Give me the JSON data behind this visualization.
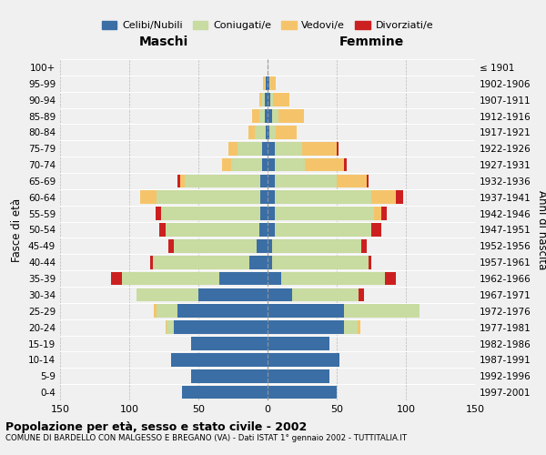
{
  "age_groups": [
    "0-4",
    "5-9",
    "10-14",
    "15-19",
    "20-24",
    "25-29",
    "30-34",
    "35-39",
    "40-44",
    "45-49",
    "50-54",
    "55-59",
    "60-64",
    "65-69",
    "70-74",
    "75-79",
    "80-84",
    "85-89",
    "90-94",
    "95-99",
    "100+"
  ],
  "birth_years": [
    "1997-2001",
    "1992-1996",
    "1987-1991",
    "1982-1986",
    "1977-1981",
    "1972-1976",
    "1967-1971",
    "1962-1966",
    "1957-1961",
    "1952-1956",
    "1947-1951",
    "1942-1946",
    "1937-1941",
    "1932-1936",
    "1927-1931",
    "1922-1926",
    "1917-1921",
    "1912-1916",
    "1907-1911",
    "1902-1906",
    "≤ 1901"
  ],
  "males": {
    "celibi": [
      62,
      55,
      70,
      55,
      68,
      65,
      50,
      35,
      13,
      8,
      6,
      5,
      5,
      5,
      4,
      4,
      1,
      2,
      2,
      1,
      0
    ],
    "coniugati": [
      0,
      0,
      0,
      0,
      5,
      15,
      45,
      70,
      70,
      60,
      68,
      72,
      75,
      55,
      22,
      18,
      8,
      4,
      2,
      1,
      0
    ],
    "vedovi": [
      0,
      0,
      0,
      0,
      1,
      2,
      0,
      0,
      0,
      0,
      0,
      0,
      12,
      3,
      7,
      6,
      5,
      5,
      2,
      1,
      0
    ],
    "divorziati": [
      0,
      0,
      0,
      0,
      0,
      0,
      0,
      8,
      2,
      4,
      4,
      4,
      0,
      2,
      0,
      0,
      0,
      0,
      0,
      0,
      0
    ]
  },
  "females": {
    "nubili": [
      50,
      45,
      52,
      45,
      55,
      55,
      18,
      10,
      3,
      3,
      5,
      5,
      5,
      5,
      5,
      5,
      1,
      3,
      2,
      1,
      0
    ],
    "coniugate": [
      0,
      0,
      0,
      0,
      10,
      55,
      48,
      75,
      70,
      65,
      70,
      72,
      70,
      45,
      22,
      20,
      5,
      5,
      2,
      1,
      0
    ],
    "vedove": [
      0,
      0,
      0,
      0,
      2,
      0,
      0,
      0,
      0,
      0,
      0,
      5,
      18,
      22,
      28,
      25,
      15,
      18,
      12,
      4,
      0
    ],
    "divorziate": [
      0,
      0,
      0,
      0,
      0,
      0,
      4,
      8,
      2,
      4,
      7,
      4,
      5,
      1,
      2,
      1,
      0,
      0,
      0,
      0,
      0
    ]
  },
  "color_celibi": "#3a6ea5",
  "color_coniugati": "#c8dba0",
  "color_vedovi": "#f5c46a",
  "color_divorziati": "#cc2020",
  "xlim": 150,
  "title": "Popolazione per età, sesso e stato civile - 2002",
  "subtitle": "COMUNE DI BARDELLO CON MALGESSO E BREGANO (VA) - Dati ISTAT 1° gennaio 2002 - TUTTITALIA.IT",
  "ylabel_left": "Fasce di età",
  "ylabel_right": "Anni di nascita",
  "label_maschi": "Maschi",
  "label_femmine": "Femmine",
  "legend_celibi": "Celibi/Nubili",
  "legend_coniugati": "Coniugati/e",
  "legend_vedovi": "Vedovi/e",
  "legend_divorziati": "Divorziati/e"
}
